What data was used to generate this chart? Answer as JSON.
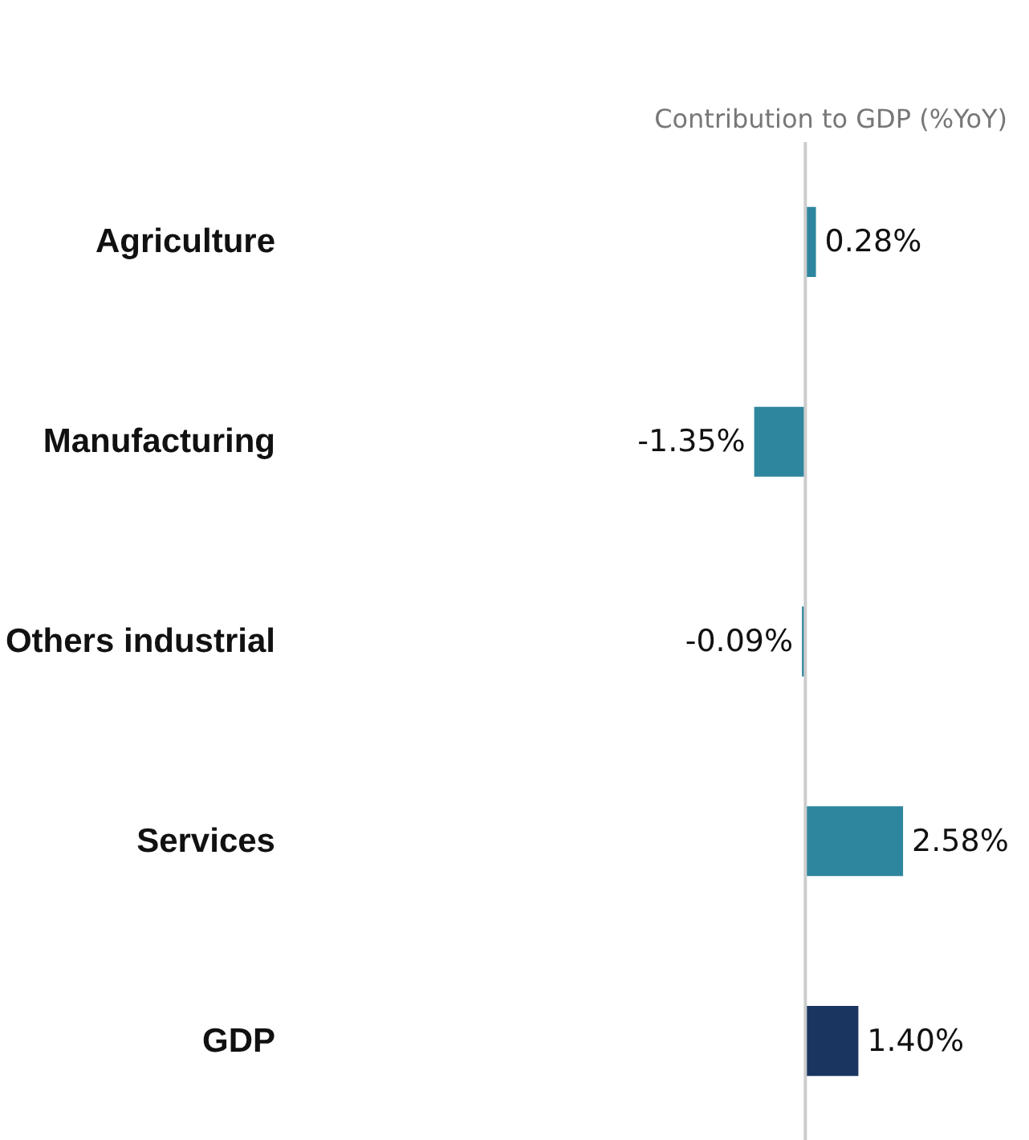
{
  "chart_data": {
    "type": "bar",
    "orientation": "horizontal",
    "title": "Contribution to GDP (%YoY)",
    "categories": [
      "Agriculture",
      "Manufacturing",
      "Others industrial",
      "Services",
      "GDP"
    ],
    "values": [
      0.28,
      -1.35,
      -0.09,
      2.58,
      1.4
    ],
    "colors": [
      "#2e869e",
      "#2e869e",
      "#2e869e",
      "#2e869e",
      "#1a3560"
    ],
    "value_labels": [
      "0.28%",
      "-1.35%",
      "-0.09%",
      "2.58%",
      "1.40%"
    ],
    "grid": false
  }
}
